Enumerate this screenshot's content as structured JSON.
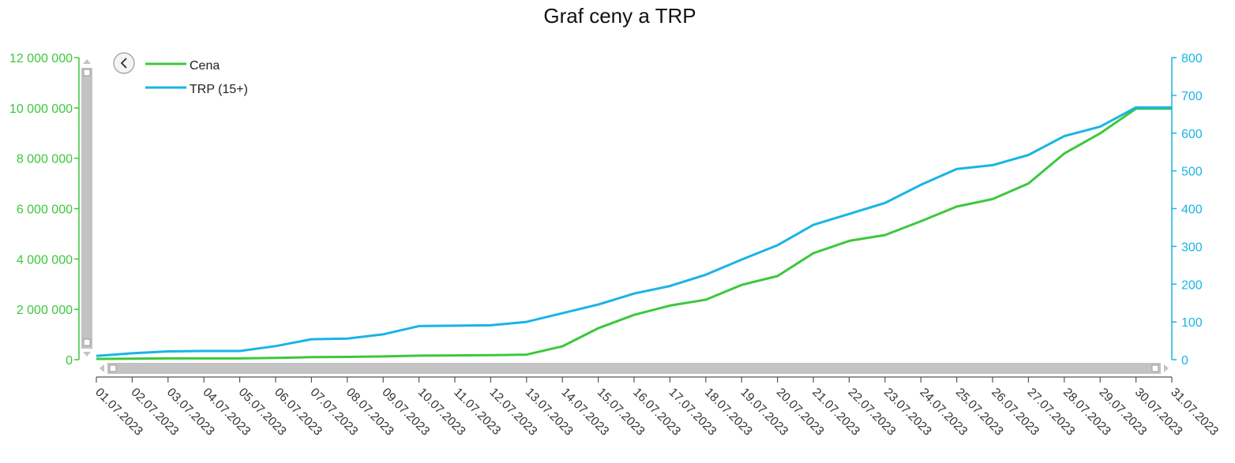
{
  "chart_data": {
    "type": "line",
    "title": "Graf ceny a TRP",
    "x": [
      "01.07.2023",
      "02.07.2023",
      "03.07.2023",
      "04.07.2023",
      "05.07.2023",
      "06.07.2023",
      "07.07.2023",
      "08.07.2023",
      "09.07.2023",
      "10.07.2023",
      "11.07.2023",
      "12.07.2023",
      "13.07.2023",
      "14.07.2023",
      "15.07.2023",
      "16.07.2023",
      "17.07.2023",
      "18.07.2023",
      "19.07.2023",
      "20.07.2023",
      "21.07.2023",
      "22.07.2023",
      "23.07.2023",
      "24.07.2023",
      "25.07.2023",
      "26.07.2023",
      "27.07.2023",
      "28.07.2023",
      "29.07.2023",
      "30.07.2023",
      "31.07.2023"
    ],
    "series": [
      {
        "name": "Cena",
        "axis": "left",
        "color": "#3cc83c",
        "values": [
          30000,
          40000,
          50000,
          50000,
          50000,
          70000,
          100000,
          110000,
          130000,
          160000,
          170000,
          180000,
          200000,
          530000,
          1250000,
          1780000,
          2150000,
          2380000,
          2970000,
          3320000,
          4230000,
          4720000,
          4950000,
          5500000,
          6080000,
          6380000,
          7000000,
          8190000,
          8990000,
          9970000,
          9970000
        ]
      },
      {
        "name": "TRP (15+)",
        "axis": "right",
        "color": "#1ab4e6",
        "values": [
          10,
          17,
          22,
          23,
          23,
          36,
          54,
          56,
          67,
          89,
          90,
          91,
          100,
          123,
          146,
          175,
          195,
          225,
          265,
          303,
          357,
          386,
          415,
          463,
          505,
          515,
          542,
          592,
          617,
          668,
          668
        ]
      }
    ],
    "y_left": {
      "ylim": [
        0,
        12000000
      ],
      "ticks": [
        "0",
        "2 000 000",
        "4 000 000",
        "6 000 000",
        "8 000 000",
        "10 000 000",
        "12 000 000"
      ],
      "color": "#3cc83c"
    },
    "y_right": {
      "ylim": [
        0,
        800
      ],
      "ticks": [
        "0",
        "100",
        "200",
        "300",
        "400",
        "500",
        "600",
        "700",
        "800"
      ],
      "color": "#1ab4e6"
    },
    "xlabel": "",
    "ylabel": "",
    "grid": false,
    "legend_position": "top-left",
    "scrollbar_color": "#c3c3c3"
  }
}
